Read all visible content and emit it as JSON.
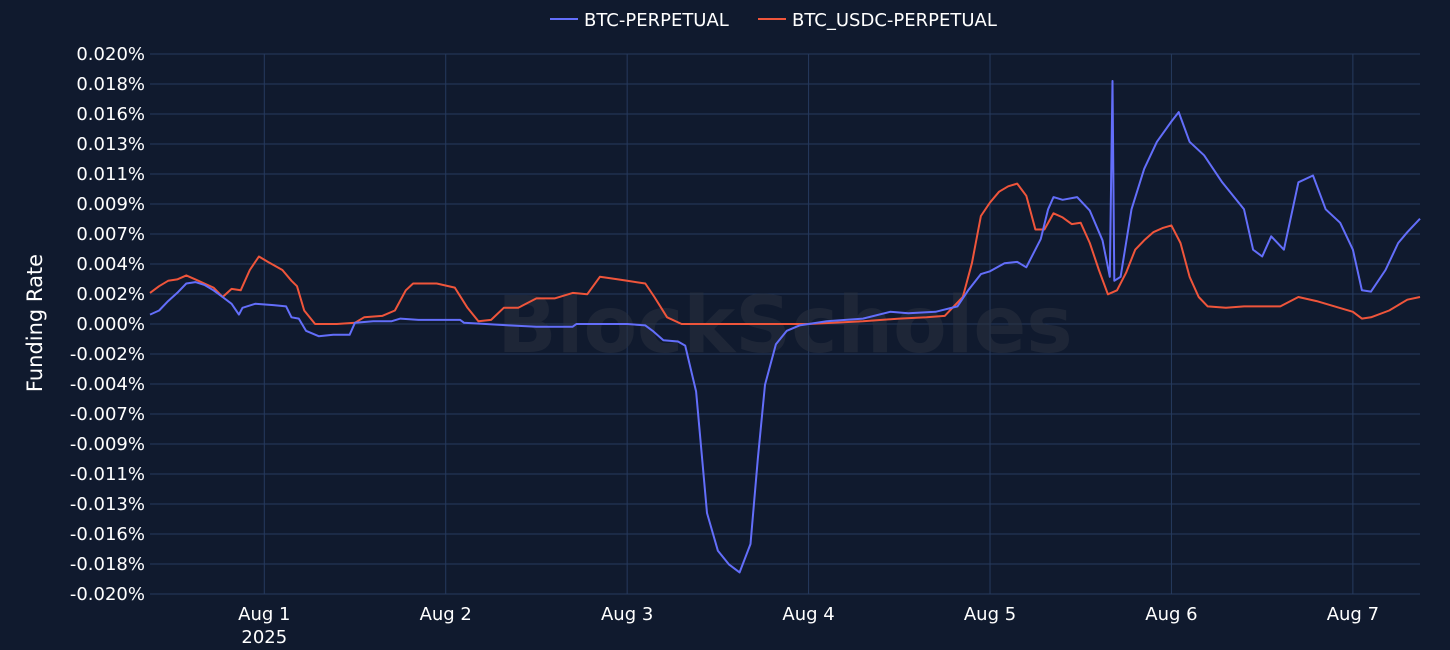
{
  "chart_data": {
    "type": "line",
    "ylabel": "Funding Rate",
    "watermark": "BlockScholes",
    "ylim": [
      -0.02,
      0.02
    ],
    "y_unit": "%",
    "y_ticks": [
      "0.020%",
      "0.018%",
      "0.016%",
      "0.013%",
      "0.011%",
      "0.009%",
      "0.007%",
      "0.004%",
      "0.002%",
      "0.000%",
      "-0.002%",
      "-0.004%",
      "-0.007%",
      "-0.009%",
      "-0.011%",
      "-0.013%",
      "-0.016%",
      "-0.018%",
      "-0.020%"
    ],
    "x_ticks": [
      {
        "label": "Aug 1",
        "sublabel": "2025",
        "x": 1.0
      },
      {
        "label": "Aug 2",
        "sublabel": "",
        "x": 2.0
      },
      {
        "label": "Aug 3",
        "sublabel": "",
        "x": 3.0
      },
      {
        "label": "Aug 4",
        "sublabel": "",
        "x": 4.0
      },
      {
        "label": "Aug 5",
        "sublabel": "",
        "x": 5.0
      },
      {
        "label": "Aug 6",
        "sublabel": "",
        "x": 6.0
      },
      {
        "label": "Aug 7",
        "sublabel": "",
        "x": 7.0
      }
    ],
    "x_axis_note": "x values are in days of Aug 2025 (1.0 = Aug 1 00:00)",
    "xlim": [
      0.37,
      7.37
    ],
    "grid": true,
    "legend_position": "top-center",
    "series": [
      {
        "name": "BTC-PERPETUAL",
        "color": "#636efa",
        "points": [
          [
            0.37,
            0.0007
          ],
          [
            0.42,
            0.001
          ],
          [
            0.47,
            0.0017
          ],
          [
            0.52,
            0.0023
          ],
          [
            0.57,
            0.003
          ],
          [
            0.62,
            0.0031
          ],
          [
            0.67,
            0.0029
          ],
          [
            0.72,
            0.0025
          ],
          [
            0.77,
            0.002
          ],
          [
            0.82,
            0.0015
          ],
          [
            0.86,
            0.0007
          ],
          [
            0.88,
            0.0012
          ],
          [
            0.95,
            0.0015
          ],
          [
            1.05,
            0.0014
          ],
          [
            1.12,
            0.0013
          ],
          [
            1.15,
            0.0005
          ],
          [
            1.19,
            0.0004
          ],
          [
            1.23,
            -0.0005
          ],
          [
            1.3,
            -0.0009
          ],
          [
            1.38,
            -0.0008
          ],
          [
            1.47,
            -0.0008
          ],
          [
            1.5,
            0.0001
          ],
          [
            1.6,
            0.0002
          ],
          [
            1.7,
            0.0002
          ],
          [
            1.75,
            0.0004
          ],
          [
            1.85,
            0.0003
          ],
          [
            1.98,
            0.0003
          ],
          [
            2.08,
            0.0003
          ],
          [
            2.1,
            0.0001
          ],
          [
            2.22,
            0.0
          ],
          [
            2.35,
            -0.0001
          ],
          [
            2.5,
            -0.0002
          ],
          [
            2.7,
            -0.0002
          ],
          [
            2.72,
            0.0
          ],
          [
            2.85,
            0.0
          ],
          [
            3.0,
            0.0
          ],
          [
            3.1,
            -0.0001
          ],
          [
            3.14,
            -0.0005
          ],
          [
            3.2,
            -0.0012
          ],
          [
            3.28,
            -0.0013
          ],
          [
            3.32,
            -0.0016
          ],
          [
            3.38,
            -0.005
          ],
          [
            3.44,
            -0.014
          ],
          [
            3.5,
            -0.0168
          ],
          [
            3.56,
            -0.0178
          ],
          [
            3.62,
            -0.0184
          ],
          [
            3.68,
            -0.0163
          ],
          [
            3.72,
            -0.01
          ],
          [
            3.76,
            -0.0045
          ],
          [
            3.82,
            -0.0015
          ],
          [
            3.88,
            -0.0005
          ],
          [
            3.95,
            -0.0001
          ],
          [
            4.1,
            0.0002
          ],
          [
            4.3,
            0.0004
          ],
          [
            4.45,
            0.0009
          ],
          [
            4.55,
            0.0008
          ],
          [
            4.7,
            0.0009
          ],
          [
            4.82,
            0.0013
          ],
          [
            4.88,
            0.0025
          ],
          [
            4.95,
            0.0037
          ],
          [
            5.0,
            0.0039
          ],
          [
            5.08,
            0.0045
          ],
          [
            5.15,
            0.0046
          ],
          [
            5.2,
            0.0042
          ],
          [
            5.28,
            0.0063
          ],
          [
            5.32,
            0.0085
          ],
          [
            5.35,
            0.0094
          ],
          [
            5.4,
            0.0092
          ],
          [
            5.48,
            0.0094
          ],
          [
            5.55,
            0.0084
          ],
          [
            5.62,
            0.0062
          ],
          [
            5.66,
            0.0035
          ],
          [
            5.675,
            0.018
          ],
          [
            5.685,
            0.0032
          ],
          [
            5.72,
            0.0035
          ],
          [
            5.78,
            0.0085
          ],
          [
            5.85,
            0.0115
          ],
          [
            5.92,
            0.0135
          ],
          [
            6.0,
            0.015
          ],
          [
            6.04,
            0.0157
          ],
          [
            6.1,
            0.0135
          ],
          [
            6.18,
            0.0125
          ],
          [
            6.28,
            0.0105
          ],
          [
            6.4,
            0.0085
          ],
          [
            6.45,
            0.0055
          ],
          [
            6.5,
            0.005
          ],
          [
            6.55,
            0.0065
          ],
          [
            6.62,
            0.0055
          ],
          [
            6.7,
            0.0105
          ],
          [
            6.78,
            0.011
          ],
          [
            6.85,
            0.0085
          ],
          [
            6.93,
            0.0075
          ],
          [
            7.0,
            0.0055
          ],
          [
            7.05,
            0.0025
          ],
          [
            7.1,
            0.0024
          ],
          [
            7.18,
            0.004
          ],
          [
            7.25,
            0.006
          ],
          [
            7.3,
            0.0068
          ],
          [
            7.37,
            0.0078
          ]
        ]
      },
      {
        "name": "BTC_USDC-PERPETUAL",
        "color": "#ef553b",
        "points": [
          [
            0.37,
            0.0023
          ],
          [
            0.42,
            0.0028
          ],
          [
            0.47,
            0.0032
          ],
          [
            0.52,
            0.0033
          ],
          [
            0.57,
            0.0036
          ],
          [
            0.62,
            0.0033
          ],
          [
            0.67,
            0.003
          ],
          [
            0.72,
            0.0027
          ],
          [
            0.77,
            0.002
          ],
          [
            0.82,
            0.0026
          ],
          [
            0.87,
            0.0025
          ],
          [
            0.92,
            0.004
          ],
          [
            0.97,
            0.005
          ],
          [
            1.02,
            0.0046
          ],
          [
            1.1,
            0.004
          ],
          [
            1.15,
            0.0032
          ],
          [
            1.18,
            0.0028
          ],
          [
            1.22,
            0.001
          ],
          [
            1.28,
            0.0
          ],
          [
            1.4,
            0.0
          ],
          [
            1.5,
            0.0001
          ],
          [
            1.55,
            0.0005
          ],
          [
            1.65,
            0.0006
          ],
          [
            1.72,
            0.001
          ],
          [
            1.78,
            0.0025
          ],
          [
            1.82,
            0.003
          ],
          [
            1.95,
            0.003
          ],
          [
            2.05,
            0.0027
          ],
          [
            2.12,
            0.0012
          ],
          [
            2.18,
            0.0002
          ],
          [
            2.25,
            0.0003
          ],
          [
            2.32,
            0.0012
          ],
          [
            2.4,
            0.0012
          ],
          [
            2.5,
            0.0019
          ],
          [
            2.6,
            0.0019
          ],
          [
            2.7,
            0.0023
          ],
          [
            2.78,
            0.0022
          ],
          [
            2.85,
            0.0035
          ],
          [
            2.95,
            0.0033
          ],
          [
            3.0,
            0.0032
          ],
          [
            3.1,
            0.003
          ],
          [
            3.15,
            0.002
          ],
          [
            3.22,
            0.0005
          ],
          [
            3.3,
            0.0
          ],
          [
            3.5,
            0.0
          ],
          [
            3.8,
            0.0
          ],
          [
            4.0,
            0.0
          ],
          [
            4.3,
            0.0002
          ],
          [
            4.5,
            0.0004
          ],
          [
            4.65,
            0.0005
          ],
          [
            4.75,
            0.0006
          ],
          [
            4.85,
            0.002
          ],
          [
            4.9,
            0.0045
          ],
          [
            4.95,
            0.008
          ],
          [
            5.0,
            0.009
          ],
          [
            5.05,
            0.0098
          ],
          [
            5.1,
            0.0102
          ],
          [
            5.15,
            0.0104
          ],
          [
            5.2,
            0.0095
          ],
          [
            5.25,
            0.007
          ],
          [
            5.3,
            0.007
          ],
          [
            5.35,
            0.0082
          ],
          [
            5.4,
            0.0079
          ],
          [
            5.45,
            0.0074
          ],
          [
            5.5,
            0.0075
          ],
          [
            5.55,
            0.006
          ],
          [
            5.6,
            0.004
          ],
          [
            5.65,
            0.0022
          ],
          [
            5.7,
            0.0025
          ],
          [
            5.75,
            0.0038
          ],
          [
            5.8,
            0.0055
          ],
          [
            5.85,
            0.0062
          ],
          [
            5.9,
            0.0068
          ],
          [
            5.95,
            0.0071
          ],
          [
            6.0,
            0.0073
          ],
          [
            6.05,
            0.006
          ],
          [
            6.1,
            0.0035
          ],
          [
            6.15,
            0.002
          ],
          [
            6.2,
            0.0013
          ],
          [
            6.3,
            0.0012
          ],
          [
            6.4,
            0.0013
          ],
          [
            6.5,
            0.0013
          ],
          [
            6.6,
            0.0013
          ],
          [
            6.7,
            0.002
          ],
          [
            6.8,
            0.0017
          ],
          [
            6.9,
            0.0013
          ],
          [
            7.0,
            0.0009
          ],
          [
            7.05,
            0.0004
          ],
          [
            7.1,
            0.0005
          ],
          [
            7.2,
            0.001
          ],
          [
            7.3,
            0.0018
          ],
          [
            7.37,
            0.002
          ]
        ]
      }
    ]
  }
}
